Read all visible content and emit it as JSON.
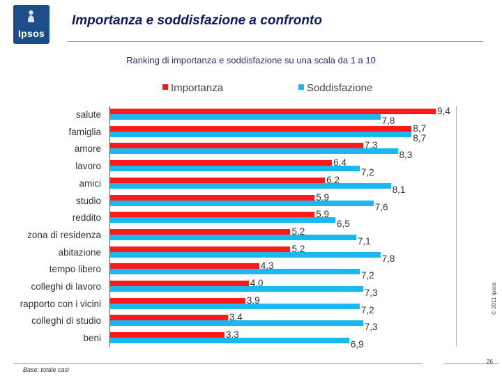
{
  "slide": {
    "logo_text": "Ipsos",
    "title": "Importanza e soddisfazione a confronto",
    "base_note": "Base: totale casi",
    "copyright": "© 2011 Ipsos",
    "page_number": "26"
  },
  "colors": {
    "importanza": "#ff1a1a",
    "soddisfazione": "#1ab8ee",
    "brand_blue": "#1c4e87",
    "title_navy": "#0e1a5c"
  },
  "chart_data": {
    "type": "bar",
    "orientation": "horizontal",
    "title": "Ranking di importanza e soddisfazione su una scala da 1 a 10",
    "xlim": [
      0,
      10
    ],
    "legend_position": "top",
    "categories": [
      "salute",
      "famiglia",
      "amore",
      "lavoro",
      "amici",
      "studio",
      "reddito",
      "zona di residenza",
      "abitazione",
      "tempo libero",
      "colleghi di lavoro",
      "rapporto con i vicini",
      "colleghi di studio",
      "beni"
    ],
    "series": [
      {
        "name": "Importanza",
        "values": [
          9.4,
          8.7,
          7.3,
          6.4,
          6.2,
          5.9,
          5.9,
          5.2,
          5.2,
          4.3,
          4.0,
          3.9,
          3.4,
          3.3
        ],
        "labels": [
          "9,4",
          "8,7",
          "7,3",
          "6,4",
          "6,2",
          "5,9",
          "5,9",
          "5,2",
          "5,2",
          "4,3",
          "4,0",
          "3,9",
          "3,4",
          "3,3"
        ]
      },
      {
        "name": "Soddisfazione",
        "values": [
          7.8,
          8.7,
          8.3,
          7.2,
          8.1,
          7.6,
          6.5,
          7.1,
          7.8,
          7.2,
          7.3,
          7.2,
          7.3,
          6.9
        ],
        "labels": [
          "7,8",
          "8,7",
          "8,3",
          "7,2",
          "8,1",
          "7,6",
          "6,5",
          "7,1",
          "7,8",
          "7,2",
          "7,3",
          "7,2",
          "7,3",
          "6,9"
        ]
      }
    ]
  }
}
